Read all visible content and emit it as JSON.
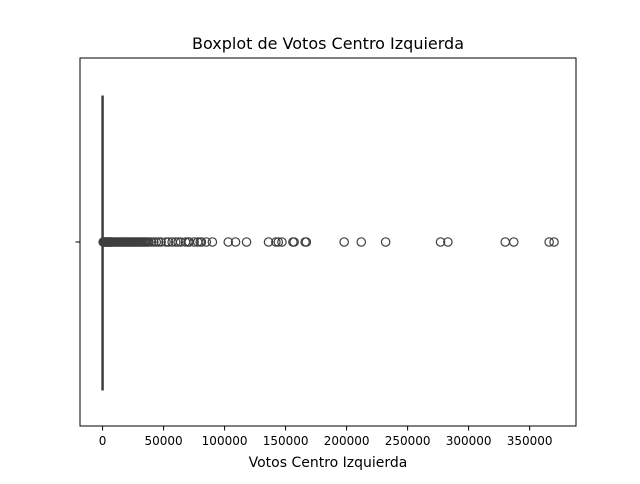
{
  "chart_data": {
    "type": "boxplot",
    "orientation": "horizontal",
    "title": "Boxplot de Votos Centro Izquierda",
    "xlabel": "Votos Centro Izquierda",
    "ylabel": "",
    "xlim": [
      -18500,
      388000
    ],
    "xticks": [
      0,
      50000,
      100000,
      150000,
      200000,
      250000,
      300000,
      350000
    ],
    "xtick_labels": [
      "0",
      "50000",
      "100000",
      "150000",
      "200000",
      "250000",
      "300000",
      "350000"
    ],
    "grid": false,
    "box": {
      "min": 0,
      "q1": 0,
      "median": 0,
      "q3": 0,
      "whisker_high": 0,
      "color": "#1f77b4",
      "line_color": "#3f3f3f"
    },
    "outliers": [
      500,
      1000,
      1500,
      2000,
      2500,
      3000,
      3500,
      4000,
      4500,
      5000,
      5500,
      6000,
      6500,
      7000,
      7500,
      8000,
      9000,
      10000,
      11000,
      12000,
      13000,
      14000,
      15000,
      16000,
      17000,
      18000,
      19000,
      20000,
      21000,
      22000,
      23000,
      24000,
      25000,
      26000,
      27000,
      28000,
      29000,
      30000,
      31000,
      32000,
      33000,
      34000,
      35000,
      36000,
      37000,
      38000,
      40000,
      42000,
      44000,
      46000,
      48000,
      52000,
      54000,
      57000,
      60000,
      62000,
      64000,
      68000,
      70000,
      71000,
      75000,
      78000,
      80000,
      81000,
      85000,
      90000,
      103000,
      109000,
      118000,
      136000,
      142000,
      144000,
      147000,
      156000,
      157000,
      166000,
      167000,
      198000,
      212000,
      232000,
      277000,
      283000,
      330000,
      337000,
      366000,
      370000
    ]
  }
}
